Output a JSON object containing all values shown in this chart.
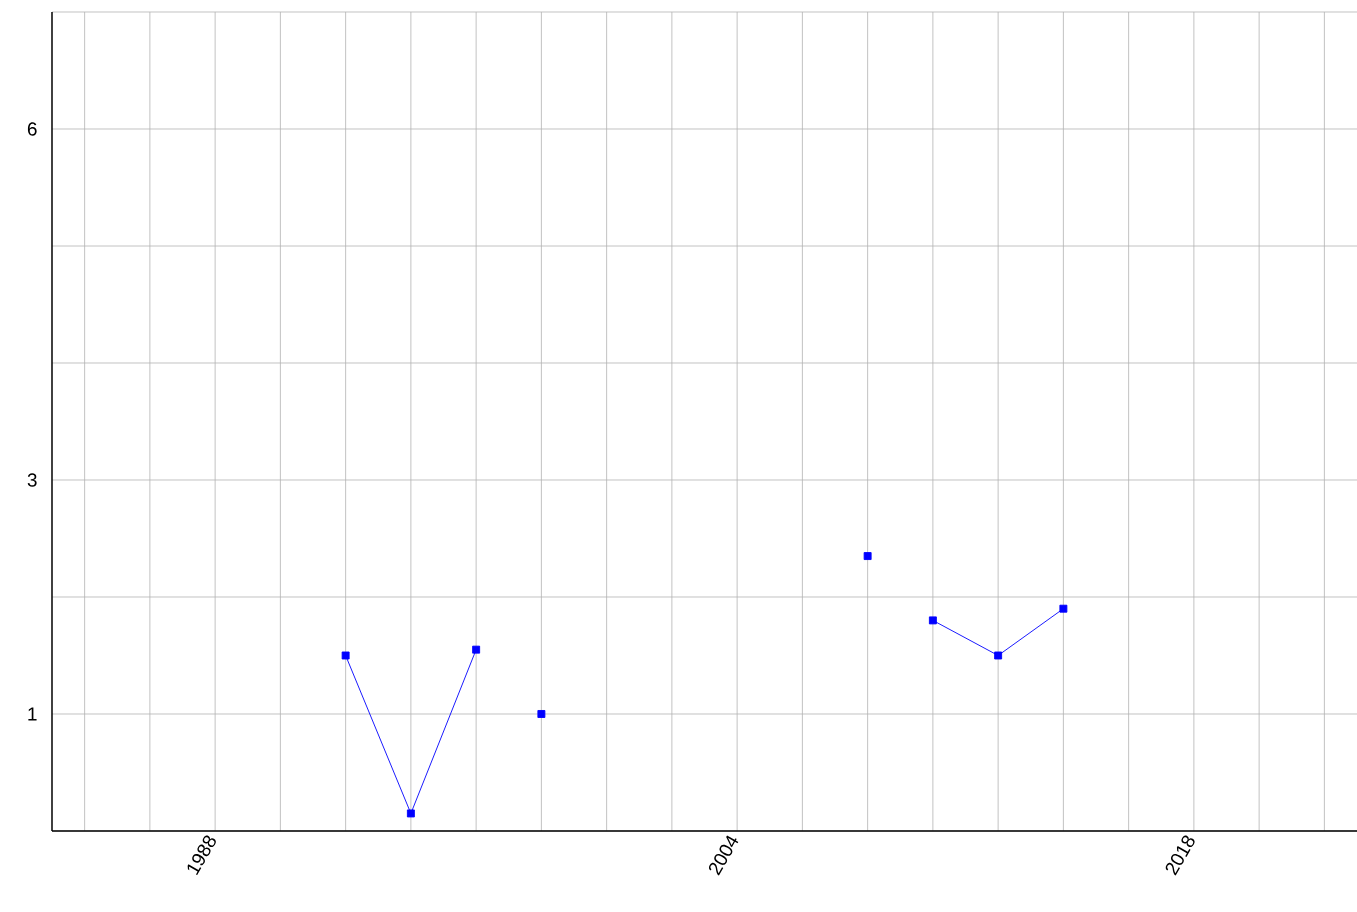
{
  "chart_data": {
    "type": "line",
    "x": [
      1992,
      1994,
      1996,
      1997,
      1998,
      2000,
      2008,
      2009,
      2010,
      2012,
      2014
    ],
    "series": [
      {
        "color": "#0000ff",
        "values": [
          1.5,
          0.15,
          1.55,
          null,
          1.0,
          null,
          2.35,
          null,
          1.8,
          1.5,
          1.9
        ]
      }
    ],
    "marker": "square",
    "grid": true,
    "xlim": [
      1983,
      2023
    ],
    "ylim": [
      0,
      7
    ],
    "xticks": [
      {
        "value": 1984,
        "label": null
      },
      {
        "value": 1986,
        "label": null
      },
      1988,
      {
        "value": 1990,
        "label": null
      },
      {
        "value": 1992,
        "label": null
      },
      {
        "value": 1994,
        "label": null
      },
      {
        "value": 1996,
        "label": null
      },
      {
        "value": 1998,
        "label": null
      },
      {
        "value": 2000,
        "label": null
      },
      {
        "value": 2002,
        "label": null
      },
      2004,
      {
        "value": 2006,
        "label": null
      },
      {
        "value": 2008,
        "label": null
      },
      {
        "value": 2010,
        "label": null
      },
      {
        "value": 2012,
        "label": null
      },
      {
        "value": 2014,
        "label": null
      },
      {
        "value": 2016,
        "label": null
      },
      2018,
      {
        "value": 2020,
        "label": null
      },
      {
        "value": 2022,
        "label": null
      }
    ],
    "yticks": [
      {
        "value": 0,
        "label": null
      },
      1,
      {
        "value": 2,
        "label": null
      },
      3,
      {
        "value": 4,
        "label": null
      },
      {
        "value": 5,
        "label": null
      },
      6,
      {
        "value": 7,
        "label": null
      }
    ]
  }
}
